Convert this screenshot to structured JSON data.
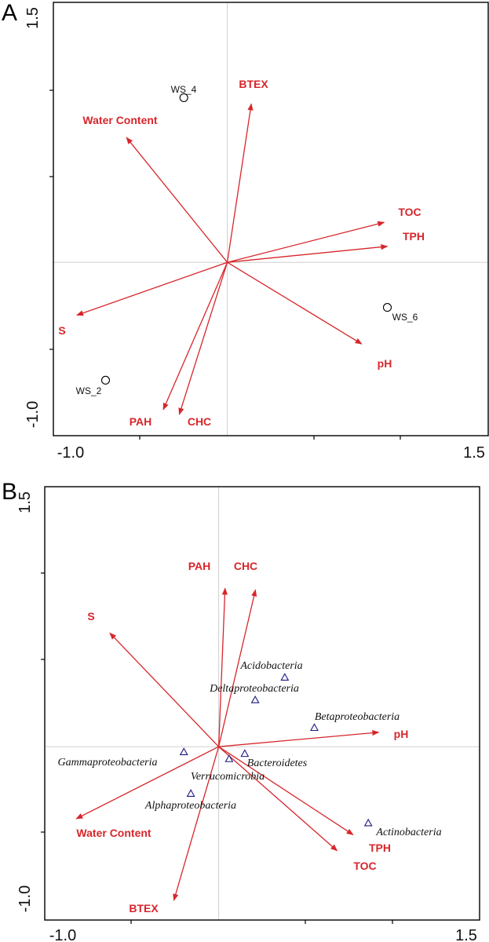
{
  "style": {
    "vector_color": "#d7262b",
    "triangle_color": "#1a1a80",
    "axis_color": "#000000",
    "crosshair_color": "#cfcfcf"
  },
  "chart_data": [
    {
      "panel": "A",
      "type": "scatter",
      "subtype": "ordination-biplot",
      "xlim": [
        -1.0,
        1.5
      ],
      "ylim": [
        -1.0,
        1.5
      ],
      "x_tick_labels": [
        "-1.0",
        "1.5"
      ],
      "y_tick_labels": [
        "1.5",
        "-1.0"
      ],
      "origin_lines": true,
      "vectors": [
        {
          "name": "BTEX",
          "x": 0.15,
          "y": 0.99
        },
        {
          "name": "Water Content",
          "x": -0.63,
          "y": 0.78
        },
        {
          "name": "TOC",
          "x": 0.98,
          "y": 0.25
        },
        {
          "name": "TPH",
          "x": 1.0,
          "y": 0.1
        },
        {
          "name": "S",
          "x": -0.94,
          "y": -0.33
        },
        {
          "name": "pH",
          "x": 0.84,
          "y": -0.51
        },
        {
          "name": "PAH",
          "x": -0.4,
          "y": -0.92
        },
        {
          "name": "CHC",
          "x": -0.3,
          "y": -0.95
        }
      ],
      "samples": [
        {
          "name": "WS_4",
          "x": -0.25,
          "y": 0.95
        },
        {
          "name": "WS_6",
          "x": 0.92,
          "y": -0.26
        },
        {
          "name": "WS_2",
          "x": -0.7,
          "y": -0.68
        }
      ]
    },
    {
      "panel": "B",
      "type": "scatter",
      "subtype": "ordination-biplot",
      "xlim": [
        -1.0,
        1.5
      ],
      "ylim": [
        -1.0,
        1.5
      ],
      "x_tick_labels": [
        "-1.0",
        "1.5"
      ],
      "y_tick_labels": [
        "1.5",
        "-1.0"
      ],
      "origin_lines": true,
      "vectors": [
        {
          "name": "PAH",
          "x": 0.04,
          "y": 0.99
        },
        {
          "name": "CHC",
          "x": 0.23,
          "y": 0.98
        },
        {
          "name": "S",
          "x": -0.68,
          "y": 0.71
        },
        {
          "name": "pH",
          "x": 1.0,
          "y": 0.09
        },
        {
          "name": "Water Content",
          "x": -0.89,
          "y": -0.45
        },
        {
          "name": "TPH",
          "x": 0.84,
          "y": -0.55
        },
        {
          "name": "TOC",
          "x": 0.74,
          "y": -0.65
        },
        {
          "name": "BTEX",
          "x": -0.28,
          "y": -0.96
        }
      ],
      "taxa": [
        {
          "name": "Acidobacteria",
          "x": 0.38,
          "y": 0.4
        },
        {
          "name": "Deltaproteobacteria",
          "x": 0.21,
          "y": 0.27
        },
        {
          "name": "Betaproteobacteria",
          "x": 0.55,
          "y": 0.11
        },
        {
          "name": "Gammaproteobacteria",
          "x": -0.2,
          "y": -0.03
        },
        {
          "name": "Bacteroidetes",
          "x": 0.15,
          "y": -0.04
        },
        {
          "name": "Verrucomicrobia",
          "x": 0.06,
          "y": -0.07
        },
        {
          "name": "Alphaproteobacteria",
          "x": -0.16,
          "y": -0.27
        },
        {
          "name": "Actinobacteria",
          "x": 0.86,
          "y": -0.44
        }
      ]
    }
  ]
}
